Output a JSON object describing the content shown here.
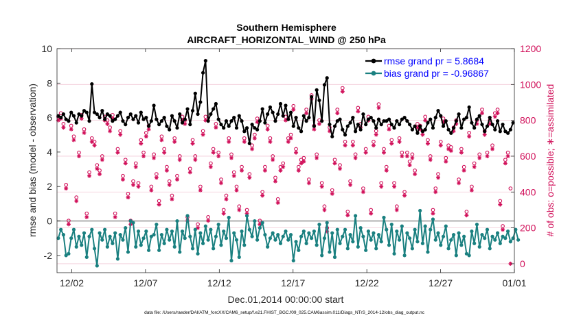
{
  "chart_data": {
    "type": "line",
    "title": "Southern Hemisphere",
    "subtitle": "AIRCRAFT_HORIZONTAL_WIND @ 250 hPa",
    "xlabel": "Dec.01,2014 00:00:00 start",
    "ylabel": "rmse and bias (model - observation)",
    "ylabel_right": "# of obs: o=possible; ∗=assimilated",
    "footnote": "data file: /Users/raeder/DAI/ATM_forcXX/CAM6_setup/f.e21.FHIST_BGC.f09_025.CAM6assim.011/Diags_NTrS_2014-12/obs_diag_output.nc",
    "xlim": [
      0,
      31
    ],
    "ylim": [
      -3,
      10
    ],
    "ylim_right": [
      -50,
      1200
    ],
    "x_ticks": [
      1,
      6,
      11,
      16,
      21,
      26,
      31
    ],
    "x_tick_labels": [
      "12/02",
      "12/07",
      "12/12",
      "12/17",
      "12/22",
      "12/27",
      "01/01"
    ],
    "y_ticks": [
      -2,
      0,
      2,
      4,
      6,
      8,
      10
    ],
    "y_ticks_right": [
      0,
      200,
      400,
      600,
      800,
      1000,
      1200
    ],
    "legend": [
      "rmse grand pr = 5.8684",
      "bias grand pr = -0.96867"
    ],
    "colors": {
      "rmse": "#000000",
      "bias": "#1a8080",
      "obs": "#d1105a",
      "legend_text": "#0000ff",
      "zero_line": "#b0b0b0"
    },
    "series": [
      {
        "name": "rmse",
        "values": [
          6.1,
          6.0,
          6.2,
          5.9,
          5.8,
          6.3,
          6.1,
          5.7,
          6.2,
          6.1,
          6.4,
          6.3,
          5.8,
          7.95,
          6.3,
          6.2,
          6.0,
          6.4,
          5.9,
          6.2,
          6.1,
          5.8,
          5.9,
          6.1,
          6.3,
          5.8,
          5.6,
          6.0,
          6.2,
          5.9,
          6.1,
          5.7,
          6.3,
          5.9,
          6.0,
          5.5,
          5.8,
          6.7,
          5.9,
          5.6,
          5.8,
          6.0,
          5.5,
          5.3,
          6.1,
          5.8,
          5.4,
          6.2,
          5.7,
          5.9,
          6.5,
          5.6,
          6.4,
          7.4,
          6.2,
          6.9,
          8.6,
          9.3,
          5.8,
          6.2,
          6.5,
          6.8,
          5.9,
          5.6,
          5.4,
          5.8,
          5.5,
          5.8,
          6.0,
          5.4,
          6.1,
          5.8,
          5.2,
          5.4,
          4.5,
          5.6,
          5.4,
          5.3,
          5.8,
          6.5,
          5.7,
          6.2,
          6.6,
          6.3,
          5.8,
          6.2,
          6.8,
          6.1,
          6.7,
          5.9,
          6.3,
          5.5,
          6.0,
          5.4,
          5.2,
          6.1,
          5.8,
          6.0,
          7.2,
          5.5,
          7.6,
          7.0,
          5.8,
          7.9,
          8.3,
          5.6,
          4.9,
          5.5,
          5.8,
          5.9,
          5.3,
          5.0,
          5.5,
          5.7,
          6.0,
          5.2,
          5.6,
          5.3,
          6.2,
          5.6,
          5.9,
          6.0,
          5.8,
          5.4,
          5.9,
          5.6,
          5.8,
          5.8,
          5.9,
          5.6,
          5.4,
          5.8,
          5.6,
          5.9,
          6.0,
          5.8,
          5.6,
          5.3,
          5.5,
          5.1,
          5.5,
          5.2,
          5.3,
          5.7,
          5.9,
          5.4,
          6.0,
          6.4,
          6.1,
          5.5,
          5.8,
          5.3,
          5.1,
          5.4,
          5.8,
          6.2,
          5.4,
          5.9,
          6.0,
          6.6,
          5.7,
          5.4,
          5.9,
          6.1,
          5.6,
          5.2,
          5.5,
          6.0,
          5.6,
          5.3,
          5.8,
          5.2,
          5.6,
          5.2,
          5.1,
          5.3,
          5.7
        ]
      },
      {
        "name": "bias",
        "values": [
          -1.0,
          -0.5,
          -0.8,
          -2.0,
          -1.9,
          -1.0,
          -0.5,
          -1.5,
          -0.9,
          -1.4,
          -0.7,
          -2.1,
          -0.9,
          -0.5,
          -1.6,
          -2.6,
          -0.7,
          -1.1,
          -0.5,
          -1.5,
          -0.9,
          -1.3,
          -0.7,
          -2.2,
          -0.8,
          -1.1,
          -0.4,
          -1.8,
          0.0,
          -0.1,
          -1.5,
          -0.6,
          -1.4,
          -1.0,
          -0.6,
          -1.7,
          -0.9,
          -0.8,
          -0.2,
          -1.7,
          -0.8,
          -1.3,
          -0.5,
          -1.1,
          -0.6,
          -1.5,
          0.0,
          -1.8,
          -0.6,
          -1.0,
          0.3,
          -0.9,
          -1.6,
          -0.5,
          -1.9,
          -0.7,
          -1.3,
          -0.3,
          -1.1,
          -0.5,
          -1.6,
          -0.9,
          -0.2,
          -1.4,
          -0.6,
          -1.0,
          0.2,
          -2.3,
          -0.7,
          -1.1,
          -2.1,
          -0.6,
          -1.4,
          0.3,
          -0.5,
          -0.9,
          0.0,
          -1.1,
          -0.4,
          -0.1,
          -0.8,
          -1.5,
          -1.0,
          -0.7,
          -1.1,
          -0.8,
          -1.3,
          -0.9,
          -0.6,
          -1.1,
          -0.8,
          -2.3,
          -1.2,
          -1.7,
          -0.9,
          -0.6,
          -1.3,
          -0.7,
          -1.0,
          -0.6,
          -1.4,
          -0.2,
          -2.0,
          -1.0,
          -0.1,
          -1.8,
          -0.7,
          -2.1,
          -0.5,
          -1.3,
          -0.9,
          -0.5,
          -1.6,
          -0.8,
          -1.2,
          0.3,
          -1.5,
          -0.4,
          -0.9,
          -1.7,
          -0.6,
          -1.1,
          -0.7,
          -1.6,
          -0.8,
          -1.2,
          0.2,
          -0.5,
          -1.4,
          -0.2,
          -1.9,
          -0.6,
          -1.1,
          -0.3,
          -2.0,
          -0.7,
          -1.0,
          -1.6,
          -0.5,
          -1.2,
          0.6,
          -1.3,
          -0.3,
          -1.8,
          -0.5,
          0.1,
          -1.1,
          -0.7,
          -1.4,
          -0.9,
          -0.3,
          -1.6,
          -1.1,
          -0.8,
          -2.0,
          -0.7,
          -1.4,
          -0.9,
          -1.9,
          -2.0,
          -0.6,
          -1.3,
          -0.2,
          -1.5,
          -0.8,
          -1.0,
          -0.5,
          -1.6,
          -0.9,
          -1.1,
          -0.7,
          -1.3,
          -0.9,
          -1.0,
          -0.6,
          -1.2,
          -1.0,
          -0.5,
          -1.1
        ]
      },
      {
        "name": "obs_possible",
        "values": [
          820,
          840,
          780,
          440,
          240,
          770,
          710,
          370,
          620,
          830,
          750,
          280,
          510,
          700,
          680,
          550,
          520,
          600,
          820,
          800,
          760,
          830,
          280,
          640,
          740,
          490,
          580,
          390,
          240,
          460,
          560,
          450,
          690,
          620,
          730,
          770,
          430,
          610,
          500,
          350,
          710,
          640,
          540,
          460,
          380,
          700,
          490,
          600,
          820,
          800,
          260,
          530,
          690,
          600,
          220,
          430,
          740,
          820,
          260,
          560,
          640,
          780,
          620,
          470,
          300,
          380,
          700,
          610,
          510,
          430,
          320,
          540,
          700,
          300,
          500,
          660,
          720,
          810,
          240,
          400,
          540,
          770,
          700,
          600,
          480,
          360,
          540,
          560,
          820,
          700,
          720,
          880,
          640,
          540,
          580,
          590,
          860,
          470,
          940,
          770,
          610,
          800,
          450,
          320,
          200,
          760,
          410,
          580,
          860,
          550,
          980,
          680,
          290,
          460,
          680,
          610,
          870,
          780,
          420,
          640,
          820,
          300,
          680,
          740,
          890,
          450,
          640,
          540,
          770,
          690,
          450,
          320,
          700,
          620,
          400,
          620,
          570,
          610,
          520,
          780,
          770,
          740,
          820,
          690,
          600,
          300,
          420,
          500,
          680,
          810,
          590,
          660,
          650,
          760,
          800,
          470,
          640,
          540,
          290,
          730,
          430,
          560,
          800,
          610,
          860,
          740,
          620,
          800,
          660,
          840,
          860,
          350,
          210,
          580,
          620,
          420
        ]
      },
      {
        "name": "obs_assimilated",
        "values": [
          800,
          810,
          760,
          420,
          220,
          750,
          690,
          350,
          600,
          810,
          730,
          260,
          490,
          680,
          660,
          530,
          500,
          580,
          800,
          780,
          740,
          810,
          260,
          620,
          720,
          470,
          560,
          370,
          220,
          440,
          540,
          430,
          670,
          600,
          710,
          750,
          410,
          590,
          480,
          330,
          690,
          620,
          520,
          440,
          360,
          680,
          470,
          580,
          800,
          780,
          240,
          510,
          670,
          580,
          200,
          410,
          720,
          800,
          240,
          540,
          620,
          760,
          600,
          450,
          280,
          360,
          680,
          590,
          490,
          410,
          300,
          520,
          680,
          280,
          480,
          640,
          700,
          790,
          220,
          380,
          520,
          750,
          680,
          580,
          460,
          340,
          520,
          540,
          800,
          680,
          700,
          860,
          620,
          520,
          560,
          570,
          840,
          450,
          920,
          750,
          590,
          780,
          430,
          300,
          180,
          740,
          390,
          560,
          840,
          530,
          960,
          660,
          270,
          440,
          660,
          590,
          850,
          760,
          400,
          620,
          800,
          280,
          660,
          720,
          870,
          430,
          620,
          520,
          750,
          670,
          430,
          300,
          680,
          600,
          380,
          600,
          550,
          590,
          500,
          760,
          750,
          720,
          800,
          670,
          580,
          280,
          400,
          480,
          660,
          790,
          570,
          640,
          630,
          740,
          780,
          450,
          620,
          520,
          270,
          710,
          410,
          540,
          780,
          590,
          840,
          720,
          600,
          780,
          640,
          820,
          840,
          330,
          190,
          560,
          600,
          0
        ]
      }
    ]
  }
}
